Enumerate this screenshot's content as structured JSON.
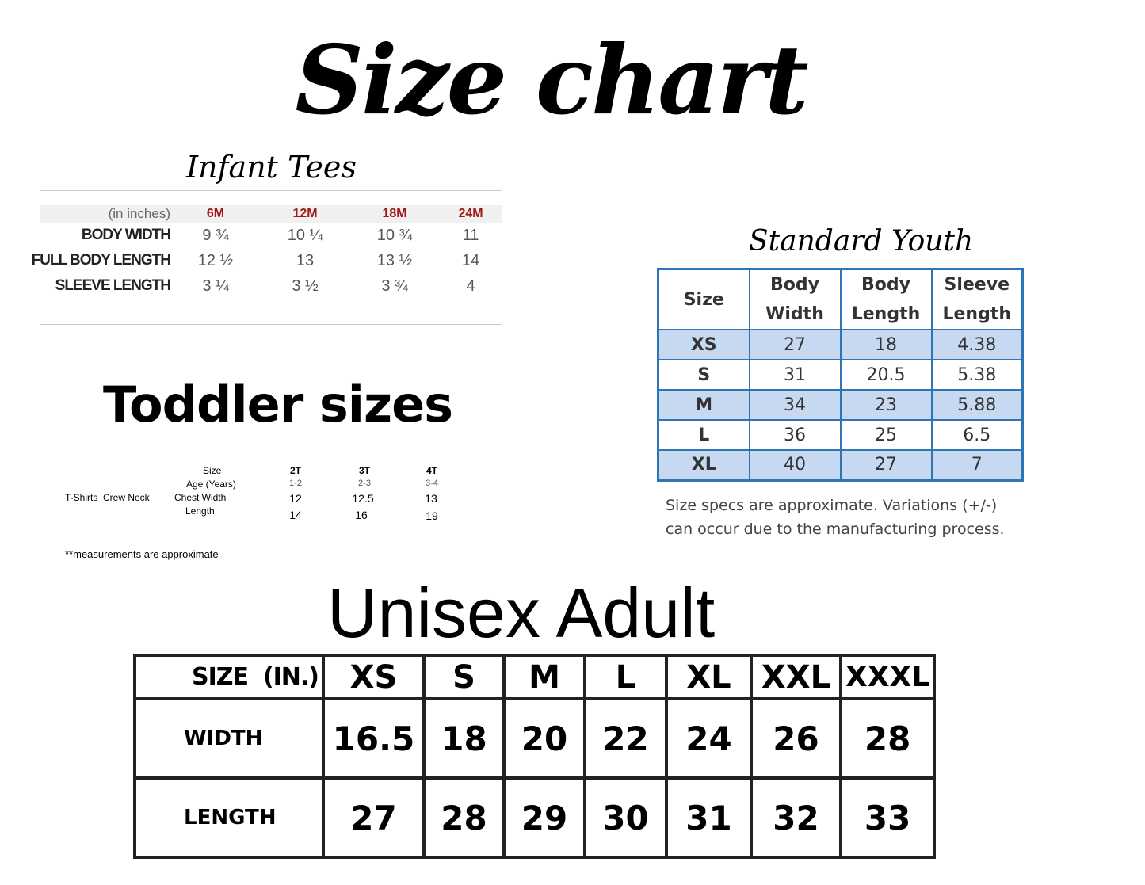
{
  "title": "Size chart",
  "infant": {
    "title": "Infant Tees",
    "unit_label": "(in inches)",
    "sizes": [
      "6M",
      "12M",
      "18M",
      "24M"
    ],
    "size_color": "#a01818",
    "rows": [
      {
        "label": "BODY WIDTH",
        "values": [
          "9 ¾",
          "10 ¼",
          "10 ¾",
          "11"
        ]
      },
      {
        "label": "FULL BODY LENGTH",
        "values": [
          "12 ½",
          "13",
          "13 ½",
          "14"
        ]
      },
      {
        "label": "SLEEVE LENGTH",
        "values": [
          "3 ¼",
          "3 ½",
          "3 ¾",
          "4"
        ]
      }
    ]
  },
  "toddler": {
    "title": "Toddler sizes",
    "product": "T-Shirts  Crew Neck",
    "row_labels": [
      "Size",
      "Age (Years)",
      "Chest Width",
      "Length"
    ],
    "sizes": [
      "2T",
      "3T",
      "4T"
    ],
    "ages": [
      "1-2",
      "2-3",
      "3-4"
    ],
    "chest": [
      "12",
      "12.5",
      "13"
    ],
    "length": [
      "14",
      "16",
      "19"
    ],
    "footnote": "**measurements are approximate"
  },
  "youth": {
    "title": "Standard Youth",
    "headers": [
      "Size",
      "Body Width",
      "Body Length",
      "Sleeve Length"
    ],
    "rows": [
      [
        "XS",
        "27",
        "18",
        "4.38"
      ],
      [
        "S",
        "31",
        "20.5",
        "5.38"
      ],
      [
        "M",
        "34",
        "23",
        "5.88"
      ],
      [
        "L",
        "36",
        "25",
        "6.5"
      ],
      [
        "XL",
        "40",
        "27",
        "7"
      ]
    ],
    "note_line1": "Size specs are approximate. Variations (+/-)",
    "note_line2": "can occur due to the manufacturing process.",
    "border_color": "#2e75b6",
    "row_fill": "#c6d9f1"
  },
  "adult": {
    "title": "Unisex Adult",
    "header_label": "SIZE  (IN.)",
    "sizes": [
      "XS",
      "S",
      "M",
      "L",
      "XL",
      "XXL",
      "XXXL"
    ],
    "rows": [
      {
        "label": "WIDTH",
        "values": [
          "16.5",
          "18",
          "20",
          "22",
          "24",
          "26",
          "28"
        ]
      },
      {
        "label": "LENGTH",
        "values": [
          "27",
          "28",
          "29",
          "30",
          "31",
          "32",
          "33"
        ]
      }
    ]
  }
}
